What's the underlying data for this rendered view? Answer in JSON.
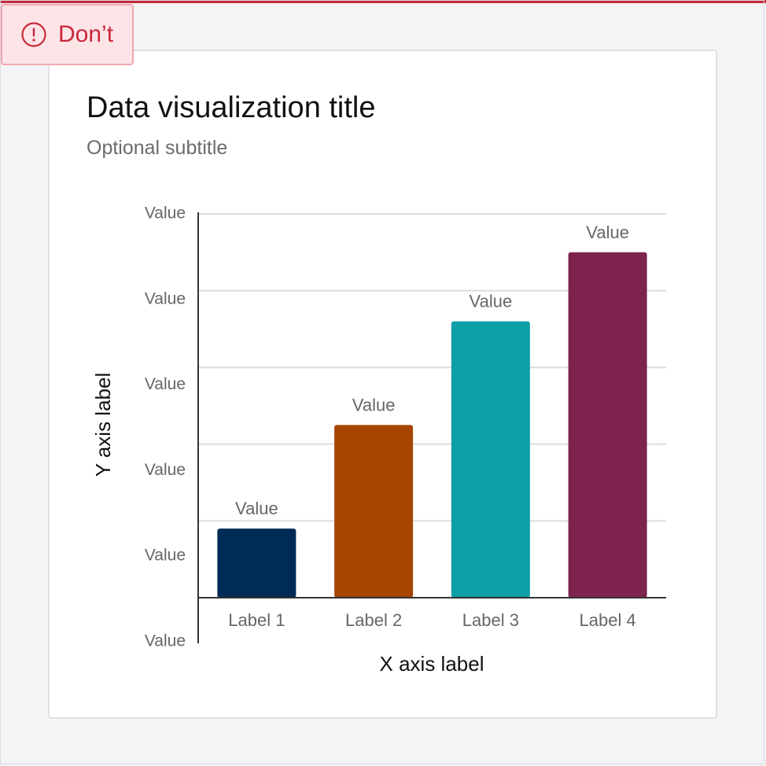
{
  "badge": {
    "icon": "exclamation-circle-icon",
    "label": "Don’t",
    "color": "#c8283a"
  },
  "card": {
    "title": "Data visualization title",
    "subtitle": "Optional subtitle"
  },
  "chart_data": {
    "type": "bar",
    "categories": [
      "Label 1",
      "Label 2",
      "Label 3",
      "Label 4"
    ],
    "values": [
      0.9,
      2.25,
      3.6,
      4.5
    ],
    "data_labels": [
      "Value",
      "Value",
      "Value",
      "Value"
    ],
    "colors": [
      "#002b55",
      "#a54500",
      "#0e9fa7",
      "#7d234e"
    ],
    "yticks": [
      {
        "value": 5,
        "label": "Value"
      },
      {
        "value": 4,
        "label": "Value"
      },
      {
        "value": 3,
        "label": "Value"
      },
      {
        "value": 2,
        "label": "Value"
      },
      {
        "value": 1,
        "label": "Value"
      },
      {
        "value": 0,
        "label": "Value"
      }
    ],
    "ylim": [
      0,
      5
    ],
    "xlabel": "X axis label",
    "ylabel": "Y axis label",
    "grid": true,
    "legend": "none"
  }
}
